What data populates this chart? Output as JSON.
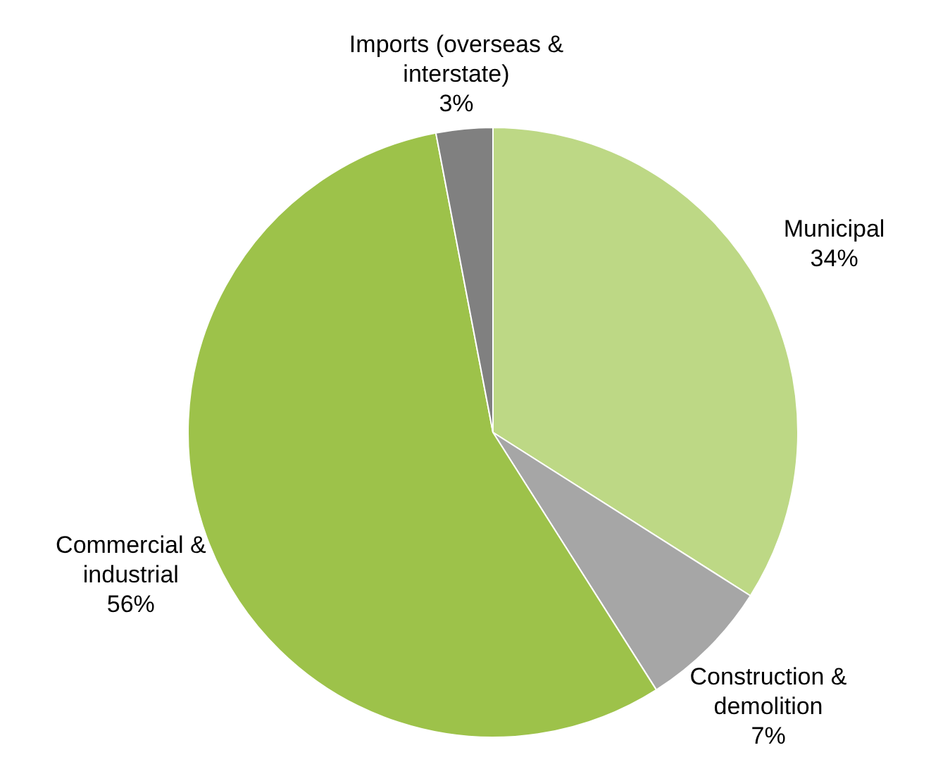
{
  "chart_data": {
    "type": "pie",
    "categories": [
      "Municipal",
      "Construction & demolition",
      "Commercial & industrial",
      "Imports (overseas & interstate)"
    ],
    "values": [
      34,
      7,
      56,
      3
    ],
    "value_labels": [
      "34%",
      "7%",
      "56%",
      "3%"
    ],
    "colors": [
      "#bdd885",
      "#a6a6a6",
      "#9dc24a",
      "#808080"
    ],
    "legend": false
  }
}
